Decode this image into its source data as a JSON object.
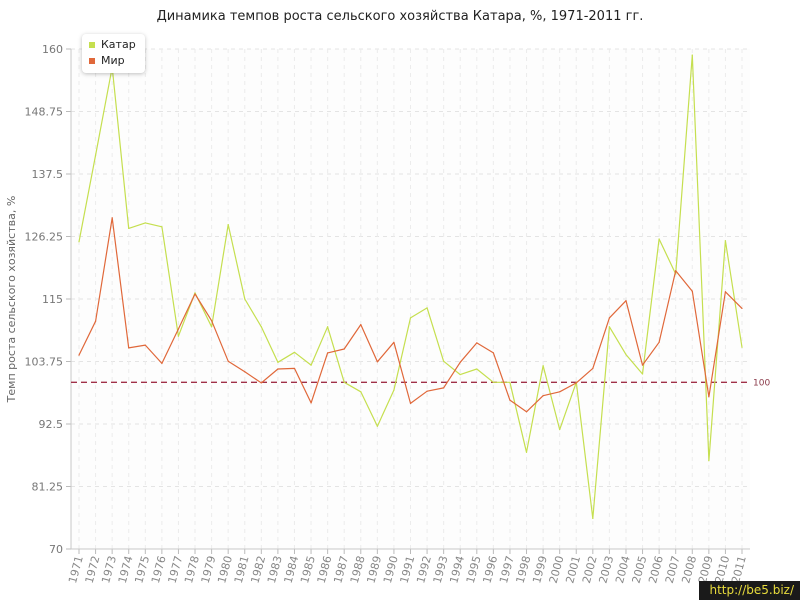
{
  "chart_data": {
    "type": "line",
    "title": "Динамика темпов роста сельского хозяйства Катара, %, 1971-2011 гг.",
    "ylabel": "Темп роста сельского хозяйства, %",
    "xlabel": "",
    "ylim": [
      70,
      160
    ],
    "yticks": [
      "70",
      "81.25",
      "92.5",
      "103.75",
      "115",
      "126.25",
      "137.5",
      "148.75",
      "160"
    ],
    "categories": [
      "1971",
      "1972",
      "1973",
      "1974",
      "1975",
      "1976",
      "1977",
      "1978",
      "1979",
      "1980",
      "1981",
      "1982",
      "1983",
      "1984",
      "1985",
      "1986",
      "1987",
      "1988",
      "1989",
      "1990",
      "1991",
      "1992",
      "1993",
      "1994",
      "1995",
      "1996",
      "1997",
      "1998",
      "1999",
      "2000",
      "2001",
      "2002",
      "2003",
      "2004",
      "2005",
      "2006",
      "2007",
      "2008",
      "2009",
      "2010",
      "2011"
    ],
    "series": [
      {
        "name": "Катар",
        "color": "#c5df4f",
        "values": [
          125.3,
          140.9,
          156.7,
          127.7,
          128.7,
          128.0,
          108.3,
          116.1,
          110.0,
          128.4,
          115.0,
          110.0,
          103.6,
          105.4,
          103.1,
          110.0,
          100.0,
          98.3,
          92.1,
          98.6,
          111.6,
          113.4,
          103.8,
          101.4,
          102.4,
          100.0,
          100.0,
          87.4,
          103.0,
          91.5,
          100.0,
          75.5,
          110.0,
          105.0,
          101.5,
          125.8,
          119.5,
          158.9,
          85.9,
          125.5,
          106.3
        ]
      },
      {
        "name": "Мир",
        "color": "#e0683a",
        "values": [
          104.9,
          111.0,
          129.6,
          106.2,
          106.7,
          103.4,
          109.6,
          115.9,
          111.1,
          103.8,
          101.9,
          99.9,
          102.4,
          102.5,
          96.3,
          105.3,
          106.0,
          110.4,
          103.7,
          107.2,
          96.2,
          98.4,
          99.0,
          103.6,
          107.1,
          105.3,
          96.8,
          94.7,
          97.6,
          98.3,
          99.9,
          102.5,
          111.6,
          114.7,
          103.1,
          107.2,
          120.1,
          116.4,
          97.4,
          116.3,
          113.3
        ]
      }
    ],
    "reference_line": {
      "value": 100,
      "label": "100",
      "color": "#a03048"
    },
    "grid": true,
    "legend_position": "top-left"
  },
  "watermark": "http://be5.biz/"
}
